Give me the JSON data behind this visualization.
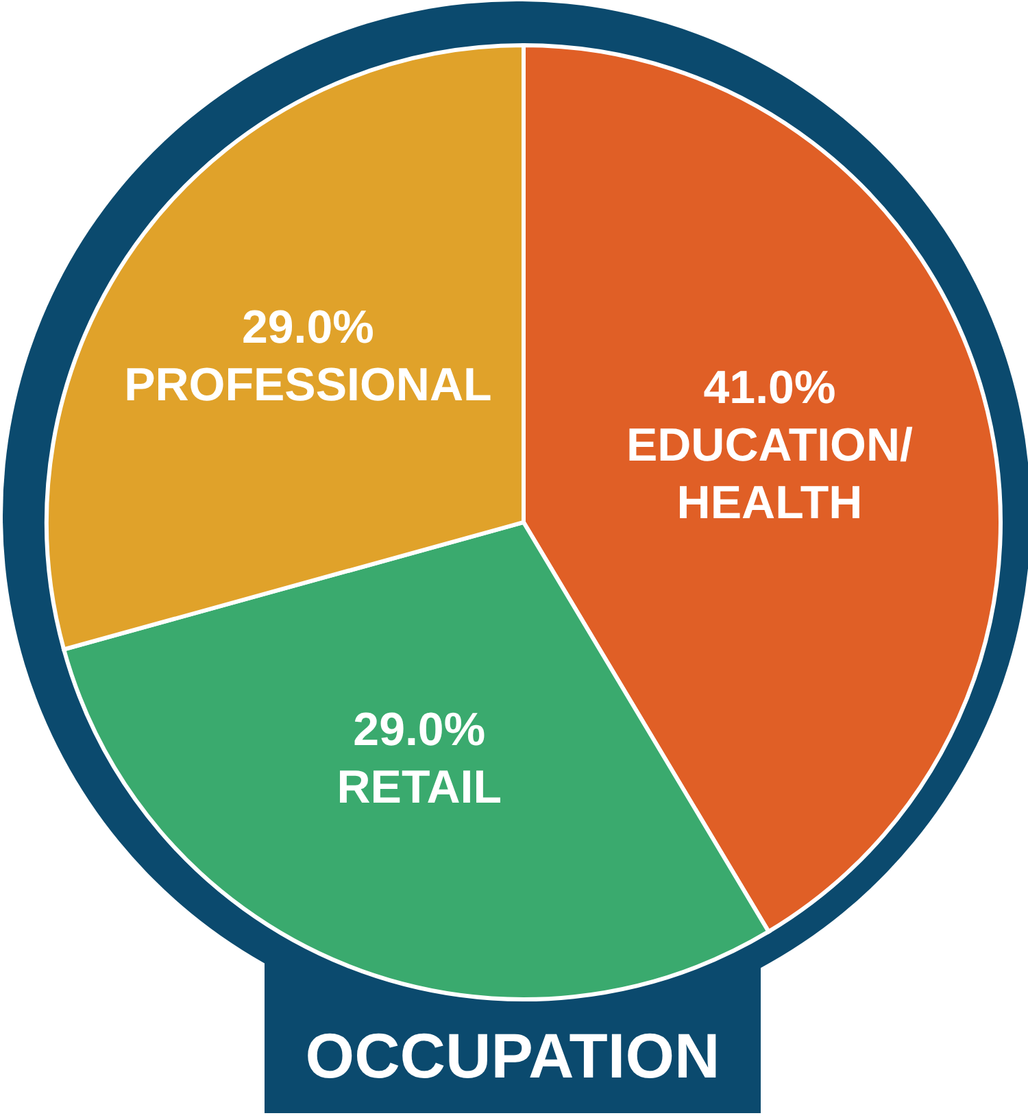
{
  "chart_data": {
    "type": "pie",
    "title": "OCCUPATION",
    "categories": [
      "EDUCATION/ HEALTH",
      "RETAIL",
      "PROFESSIONAL"
    ],
    "values": [
      41.0,
      29.0,
      29.0
    ],
    "colors": [
      "#e05f26",
      "#3aaa6e",
      "#e0a22a"
    ],
    "value_labels": [
      "41.0%",
      "29.0%",
      "29.0%"
    ]
  }
}
